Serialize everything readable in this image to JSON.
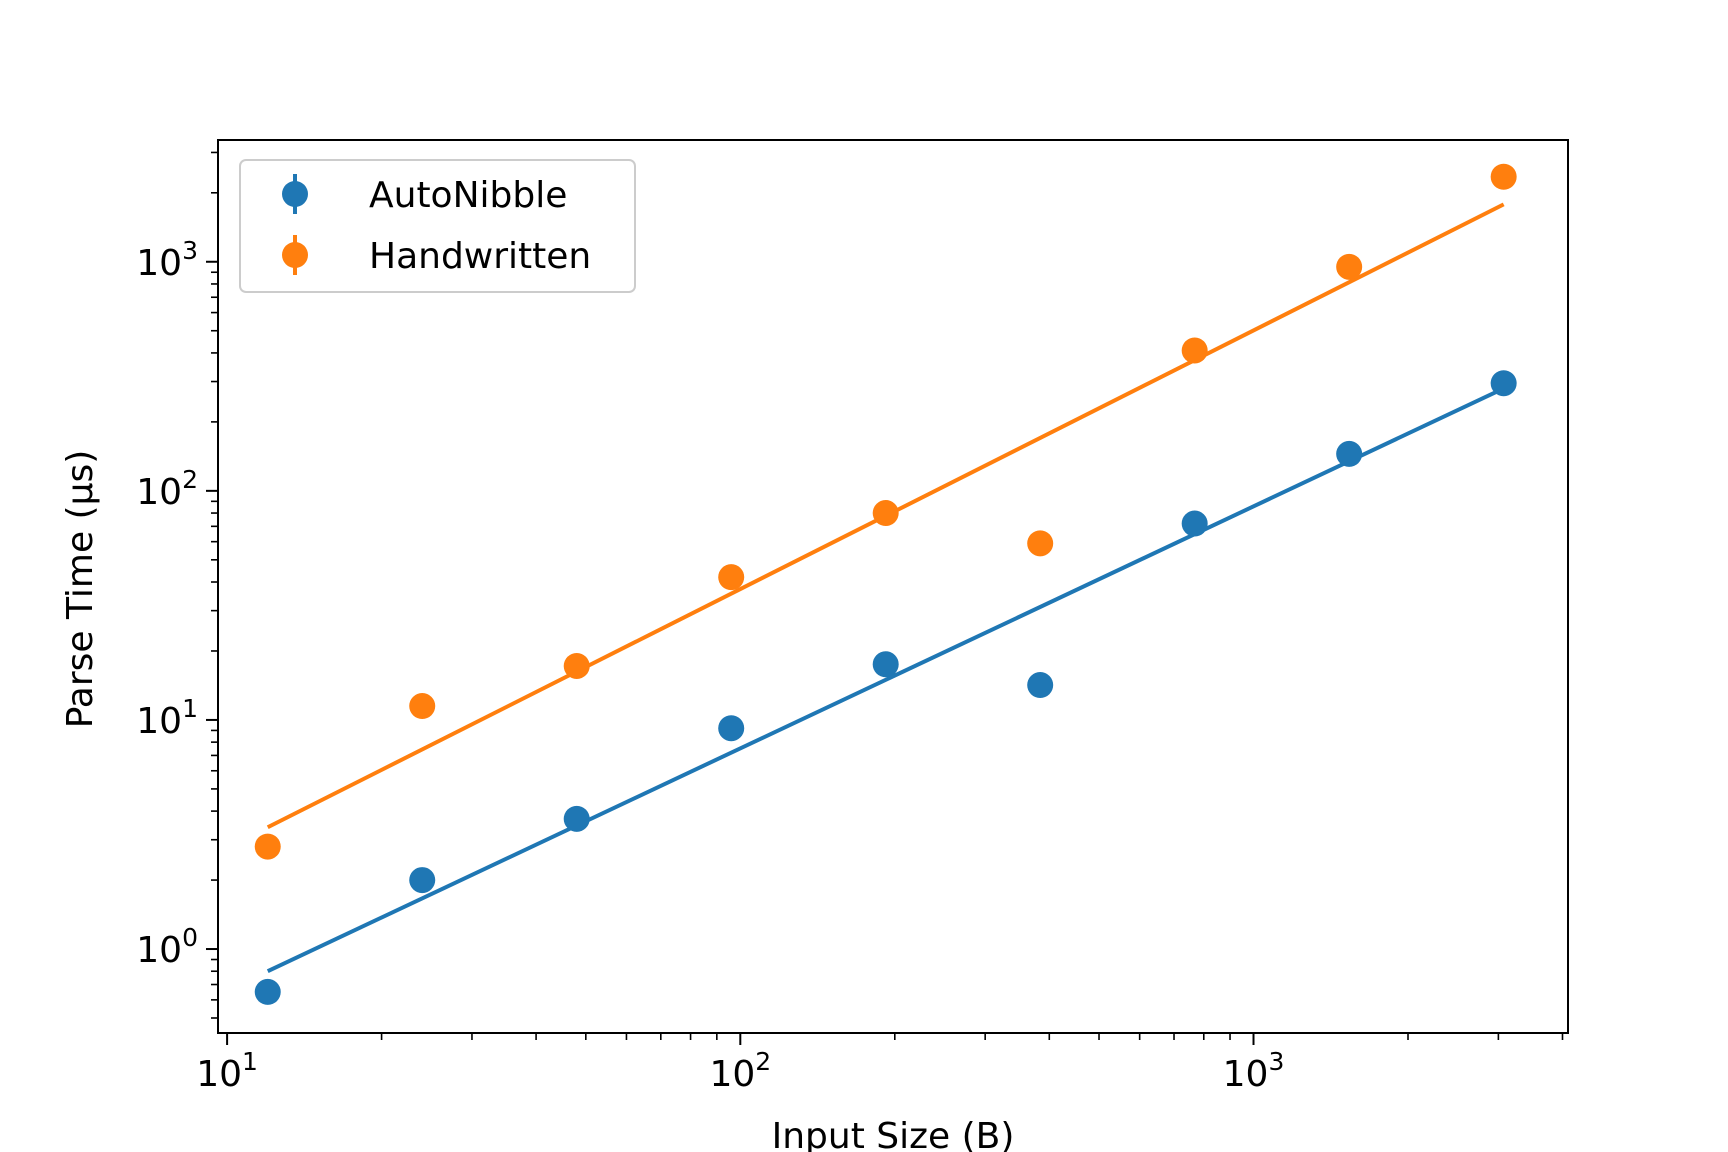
{
  "chart_data": {
    "type": "scatter",
    "title": "",
    "xlabel": "Input Size (B)",
    "ylabel": "Parse Time (µs)",
    "xscale": "log",
    "yscale": "log",
    "xlim": [
      9.6,
      4100
    ],
    "ylim": [
      0.43,
      3400
    ],
    "grid": false,
    "legend_position": "top-left",
    "x_ticks": [
      {
        "value": 10,
        "base": "10",
        "exp": "1"
      },
      {
        "value": 100,
        "base": "10",
        "exp": "2"
      },
      {
        "value": 1000,
        "base": "10",
        "exp": "3"
      }
    ],
    "y_ticks": [
      {
        "value": 1,
        "base": "10",
        "exp": "0"
      },
      {
        "value": 10,
        "base": "10",
        "exp": "1"
      },
      {
        "value": 100,
        "base": "10",
        "exp": "2"
      },
      {
        "value": 1000,
        "base": "10",
        "exp": "3"
      }
    ],
    "series": [
      {
        "name": "AutoNibble",
        "color": "#1f77b4",
        "x": [
          12,
          24,
          48,
          96,
          192,
          384,
          768,
          1536,
          3072
        ],
        "y": [
          0.65,
          2.0,
          3.7,
          9.2,
          17.5,
          14.2,
          72,
          145,
          295
        ],
        "fit": {
          "x": [
            12,
            3072
          ],
          "y": [
            0.8,
            280
          ]
        }
      },
      {
        "name": "Handwritten",
        "color": "#ff7f0e",
        "x": [
          12,
          24,
          48,
          96,
          192,
          384,
          768,
          1536,
          3072
        ],
        "y": [
          2.8,
          11.5,
          17.2,
          42,
          80,
          59,
          410,
          950,
          2350
        ],
        "fit": {
          "x": [
            12,
            3072
          ],
          "y": [
            3.4,
            1780
          ]
        }
      }
    ]
  }
}
